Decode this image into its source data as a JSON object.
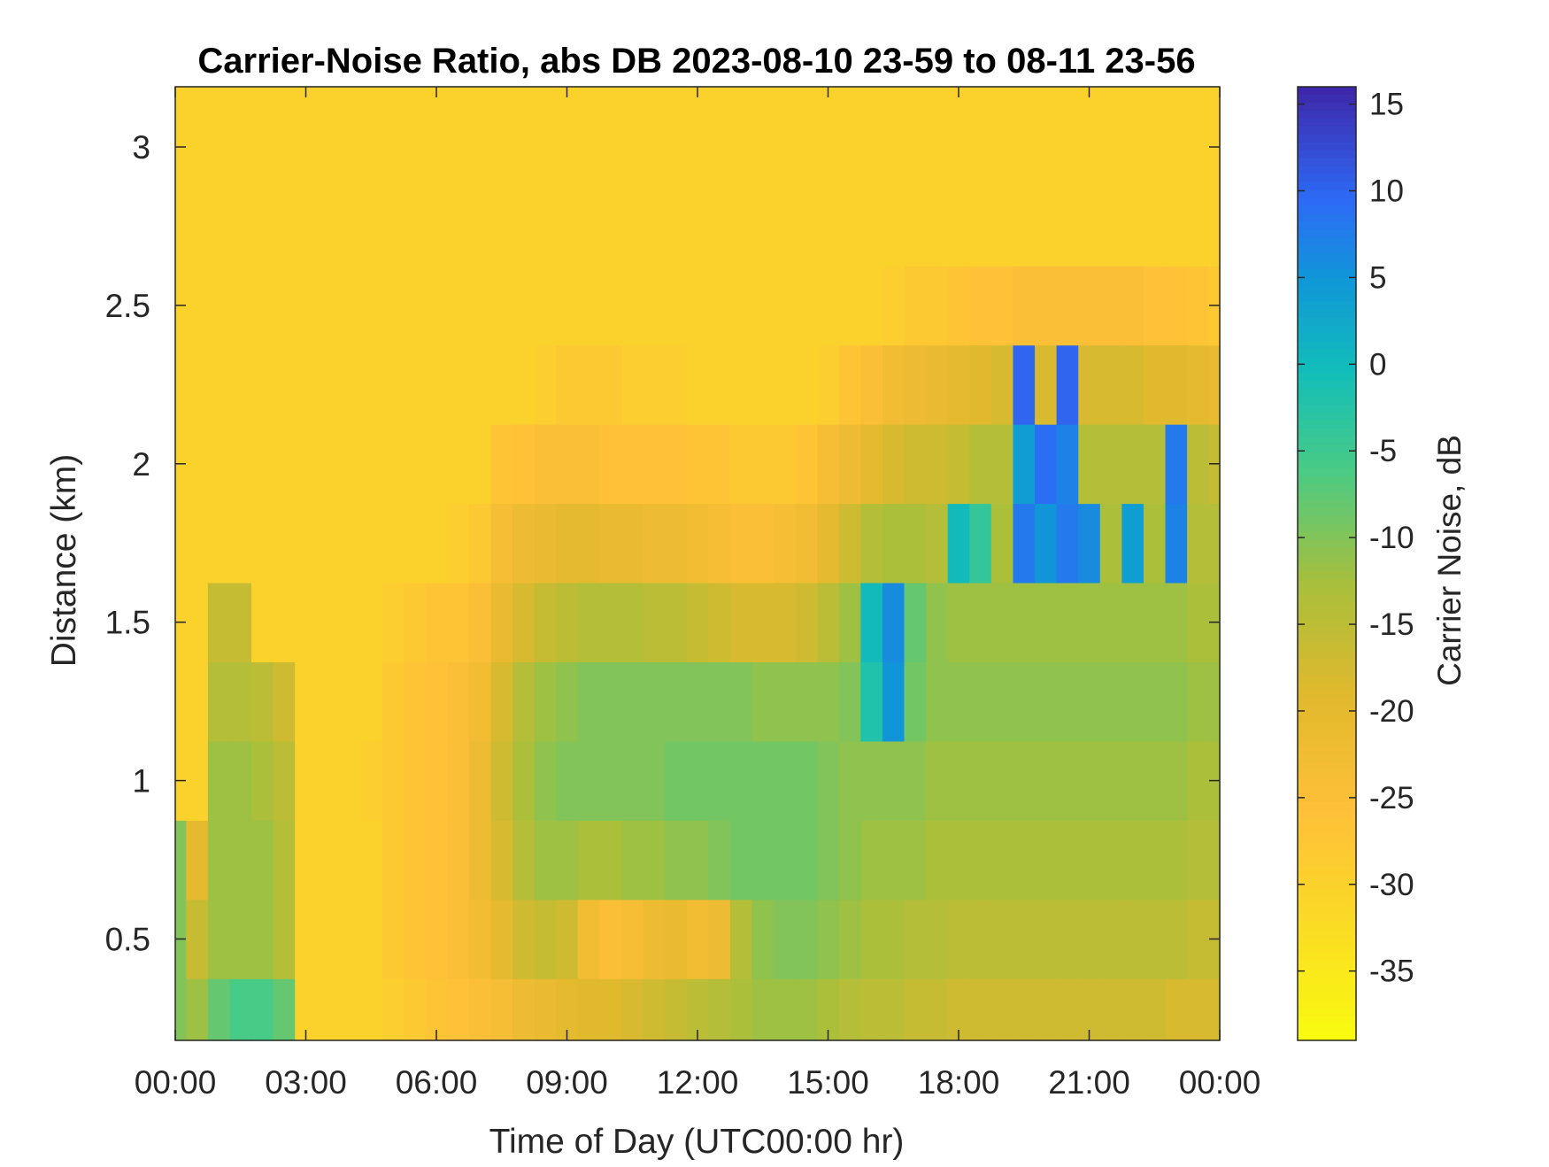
{
  "chart_data": {
    "type": "heatmap",
    "title": "Carrier-Noise Ratio, abs DB 2023-08-10 23-59 to 08-11 23-56",
    "xlabel": "Time of Day (UTC00:00 hr)",
    "ylabel": "Distance (km)",
    "colorbar_label": "Carrier Noise, dB",
    "x_units": "hours",
    "xlim": [
      0,
      24
    ],
    "x_ticks": [
      0,
      3,
      6,
      9,
      12,
      15,
      18,
      21,
      24
    ],
    "x_tick_labels": [
      "00:00",
      "03:00",
      "06:00",
      "09:00",
      "12:00",
      "15:00",
      "18:00",
      "21:00",
      "00:00"
    ],
    "ylim": [
      0.18,
      3.19
    ],
    "y_ticks": [
      0.5,
      1,
      1.5,
      2,
      2.5,
      3
    ],
    "y_tick_labels": [
      "0.5",
      "1",
      "1.5",
      "2",
      "2.5",
      "3"
    ],
    "clim": [
      -39,
      16
    ],
    "cbar_ticks": [
      15,
      10,
      5,
      0,
      -5,
      -10,
      -15,
      -20,
      -25,
      -30,
      -35
    ],
    "cbar_tick_labels": [
      "15",
      "10",
      "5",
      "0",
      "-5",
      "-10",
      "-15",
      "-20",
      "-25",
      "-30",
      "-35"
    ],
    "colormap": "parula",
    "grid": false,
    "time_hours": [
      0,
      0.5,
      1,
      1.5,
      2,
      2.5,
      3,
      3.5,
      4,
      4.5,
      5,
      5.5,
      6,
      6.5,
      7,
      7.5,
      8,
      8.5,
      9,
      9.5,
      10,
      10.5,
      11,
      11.5,
      12,
      12.5,
      13,
      13.5,
      14,
      14.5,
      15,
      15.5,
      16,
      16.5,
      17,
      17.5,
      18,
      18.5,
      19,
      19.5,
      20,
      20.5,
      21,
      21.5,
      22,
      22.5,
      23,
      23.5,
      24
    ],
    "distance_km": [
      0.25,
      0.5,
      0.75,
      1.0,
      1.25,
      1.5,
      1.75,
      2.0,
      2.25,
      2.5,
      2.75,
      3.0
    ],
    "carrier_noise_db": [
      [
        -10,
        -10,
        -10,
        -30,
        -30,
        -30,
        -30,
        -30,
        -30,
        -30,
        -30,
        -30
      ],
      [
        -12,
        -16,
        -20,
        -30,
        -30,
        -30,
        -30,
        -30,
        -30,
        -30,
        -30,
        -30
      ],
      [
        -8,
        -12,
        -12,
        -12,
        -14,
        -16,
        -30,
        -30,
        -30,
        -30,
        -30,
        -30
      ],
      [
        -6,
        -12,
        -12,
        -12,
        -14,
        -16,
        -30,
        -30,
        -30,
        -30,
        -30,
        -30
      ],
      [
        -6,
        -12,
        -12,
        -13,
        -15,
        -30,
        -30,
        -30,
        -30,
        -30,
        -30,
        -30
      ],
      [
        -8,
        -14,
        -14,
        -15,
        -17,
        -30,
        -30,
        -30,
        -30,
        -30,
        -30,
        -30
      ],
      [
        -30,
        -30,
        -30,
        -30,
        -30,
        -30,
        -30,
        -30,
        -30,
        -30,
        -30,
        -30
      ],
      [
        -30,
        -30,
        -30,
        -30,
        -30,
        -30,
        -30,
        -30,
        -30,
        -30,
        -30,
        -30
      ],
      [
        -30,
        -30,
        -30,
        -30,
        -30,
        -30,
        -30,
        -30,
        -30,
        -30,
        -30,
        -30
      ],
      [
        -30,
        -30,
        -30,
        -29,
        -30,
        -30,
        -30,
        -30,
        -30,
        -30,
        -30,
        -30
      ],
      [
        -29,
        -28,
        -28,
        -28,
        -28,
        -29,
        -30,
        -30,
        -30,
        -30,
        -30,
        -30
      ],
      [
        -28,
        -27,
        -27,
        -27,
        -27,
        -28,
        -30,
        -30,
        -30,
        -30,
        -30,
        -30
      ],
      [
        -27,
        -26,
        -26,
        -26,
        -26,
        -27,
        -30,
        -30,
        -30,
        -30,
        -30,
        -30
      ],
      [
        -26,
        -25,
        -25,
        -25,
        -25,
        -27,
        -29,
        -30,
        -30,
        -30,
        -30,
        -30
      ],
      [
        -25,
        -23,
        -22,
        -22,
        -23,
        -25,
        -28,
        -30,
        -30,
        -30,
        -30,
        -30
      ],
      [
        -24,
        -20,
        -18,
        -17,
        -18,
        -21,
        -24,
        -27,
        -30,
        -30,
        -30,
        -30
      ],
      [
        -22,
        -17,
        -14,
        -13,
        -14,
        -18,
        -22,
        -26,
        -30,
        -30,
        -30,
        -30
      ],
      [
        -21,
        -16,
        -12,
        -11,
        -12,
        -16,
        -21,
        -25,
        -29,
        -30,
        -30,
        -30
      ],
      [
        -20,
        -17,
        -12,
        -10,
        -11,
        -15,
        -20,
        -25,
        -28,
        -30,
        -30,
        -30
      ],
      [
        -19,
        -23,
        -13,
        -10,
        -10,
        -14,
        -20,
        -25,
        -28,
        -30,
        -30,
        -30
      ],
      [
        -19,
        -25,
        -13,
        -10,
        -10,
        -14,
        -21,
        -26,
        -28,
        -30,
        -30,
        -30
      ],
      [
        -18,
        -24,
        -12,
        -10,
        -10,
        -14,
        -21,
        -26,
        -29,
        -30,
        -30,
        -30
      ],
      [
        -17,
        -22,
        -12,
        -10,
        -10,
        -15,
        -22,
        -26,
        -29,
        -30,
        -30,
        -30
      ],
      [
        -16,
        -21,
        -11,
        -9,
        -10,
        -15,
        -22,
        -26,
        -29,
        -30,
        -30,
        -30
      ],
      [
        -15,
        -23,
        -11,
        -9,
        -10,
        -16,
        -23,
        -27,
        -30,
        -30,
        -30,
        -30
      ],
      [
        -14,
        -22,
        -10,
        -9,
        -10,
        -17,
        -24,
        -27,
        -30,
        -30,
        -30,
        -30
      ],
      [
        -13,
        -14,
        -9,
        -9,
        -10,
        -18,
        -25,
        -28,
        -30,
        -30,
        -30,
        -30
      ],
      [
        -12,
        -11,
        -9,
        -9,
        -11,
        -18,
        -25,
        -28,
        -30,
        -30,
        -30,
        -30
      ],
      [
        -12,
        -10,
        -9,
        -9,
        -11,
        -18,
        -24,
        -28,
        -30,
        -30,
        -30,
        -30
      ],
      [
        -12,
        -10,
        -9,
        -9,
        -11,
        -17,
        -23,
        -27,
        -30,
        -30,
        -30,
        -30
      ],
      [
        -13,
        -11,
        -10,
        -10,
        -11,
        -15,
        -20,
        -24,
        -29,
        -30,
        -30,
        -30
      ],
      [
        -14,
        -12,
        -11,
        -11,
        -10,
        -12,
        -17,
        -22,
        -27,
        -30,
        -30,
        -30
      ],
      [
        -15,
        -13,
        -12,
        -11,
        -2,
        0,
        -14,
        -20,
        -25,
        -30,
        -30,
        -30
      ],
      [
        -15,
        -13,
        -12,
        -11,
        5,
        6,
        -13,
        -18,
        -23,
        -29,
        -30,
        -30
      ],
      [
        -16,
        -14,
        -12,
        -11,
        -9,
        -8,
        -13,
        -17,
        -22,
        -28,
        -30,
        -30
      ],
      [
        -16,
        -14,
        -13,
        -12,
        -11,
        -11,
        -14,
        -17,
        -21,
        -28,
        -30,
        -30
      ],
      [
        -17,
        -15,
        -13,
        -12,
        -11,
        -12,
        0,
        -16,
        -20,
        -27,
        -30,
        -30
      ],
      [
        -17,
        -15,
        -13,
        -12,
        -11,
        -12,
        -4,
        -14,
        -19,
        -26,
        -30,
        -30
      ],
      [
        -17,
        -15,
        -13,
        -12,
        -11,
        -12,
        -13,
        -14,
        -18,
        -26,
        -30,
        -30
      ],
      [
        -17,
        -15,
        -13,
        -12,
        -11,
        -12,
        8,
        4,
        10,
        -25,
        -30,
        -30
      ],
      [
        -17,
        -15,
        -13,
        -12,
        -11,
        -12,
        5,
        9,
        -18,
        -25,
        -30,
        -30
      ],
      [
        -17,
        -15,
        -13,
        -12,
        -11,
        -12,
        8,
        7,
        10,
        -25,
        -30,
        -30
      ],
      [
        -17,
        -15,
        -13,
        -12,
        -11,
        -12,
        6,
        -14,
        -18,
        -25,
        -30,
        -30
      ],
      [
        -17,
        -15,
        -13,
        -12,
        -11,
        -12,
        -13,
        -14,
        -18,
        -25,
        -30,
        -30
      ],
      [
        -17,
        -15,
        -13,
        -12,
        -11,
        -12,
        4,
        -14,
        -18,
        -25,
        -30,
        -30
      ],
      [
        -17,
        -15,
        -13,
        -12,
        -11,
        -12,
        -13,
        -14,
        -19,
        -26,
        -30,
        -30
      ],
      [
        -18,
        -15,
        -13,
        -12,
        -11,
        -12,
        7,
        8,
        -19,
        -26,
        -30,
        -30
      ],
      [
        -18,
        -16,
        -14,
        -13,
        -12,
        -13,
        -14,
        -15,
        -20,
        -27,
        -30,
        -30
      ],
      [
        -18,
        -16,
        -14,
        -13,
        -12,
        -13,
        -14,
        -16,
        -21,
        -28,
        -30,
        -30
      ]
    ]
  }
}
